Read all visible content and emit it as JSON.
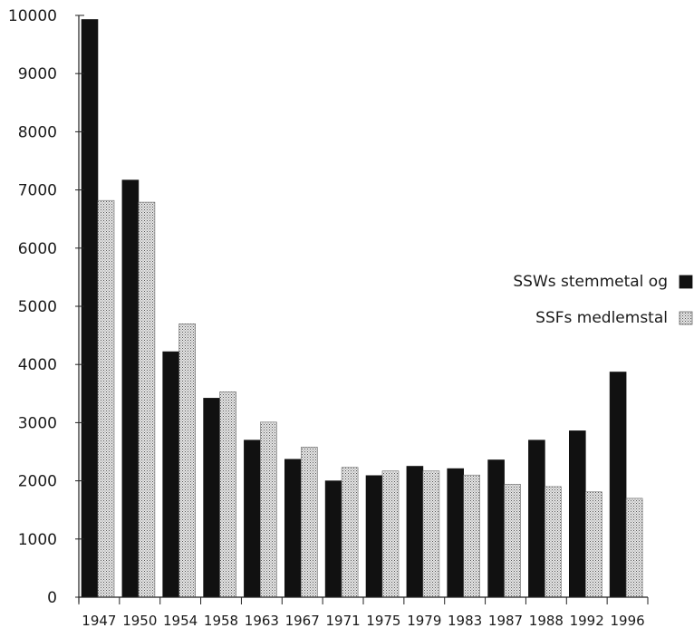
{
  "chart_data": {
    "type": "bar",
    "title": "",
    "xlabel": "",
    "ylabel": "",
    "ylim": [
      0,
      10000
    ],
    "yticks": [
      0,
      1000,
      2000,
      3000,
      4000,
      5000,
      6000,
      7000,
      8000,
      9000,
      10000
    ],
    "grid": false,
    "legend_position": "right",
    "categories": [
      "1947",
      "1950",
      "1954",
      "1958",
      "1963",
      "1967",
      "1971",
      "1975",
      "1979",
      "1983",
      "1987",
      "1988",
      "1992",
      "1996"
    ],
    "series": [
      {
        "name": "SSWs stemmetal og",
        "color": "#111111",
        "pattern": "solid",
        "values": [
          9930,
          7170,
          4220,
          3420,
          2700,
          2370,
          2000,
          2090,
          2250,
          2210,
          2360,
          2700,
          2860,
          3870
        ]
      },
      {
        "name": "SSFs medlemstal",
        "color": "#cfcfcf",
        "pattern": "dotted",
        "values": [
          6820,
          6790,
          4700,
          3530,
          3010,
          2580,
          2230,
          2170,
          2170,
          2100,
          1940,
          1900,
          1810,
          1700
        ]
      }
    ]
  }
}
